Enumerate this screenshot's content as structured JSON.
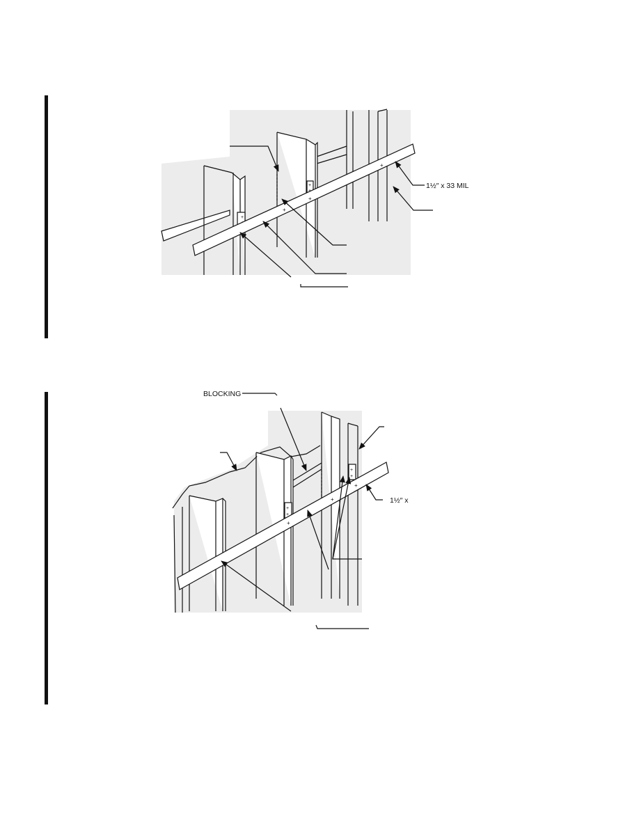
{
  "figure_1": {
    "labels": {
      "strap_size": "1½″ x 33 MIL"
    }
  },
  "figure_2": {
    "labels": {
      "blocking": "BLOCKING",
      "strap_size": "1½″ x"
    }
  }
}
